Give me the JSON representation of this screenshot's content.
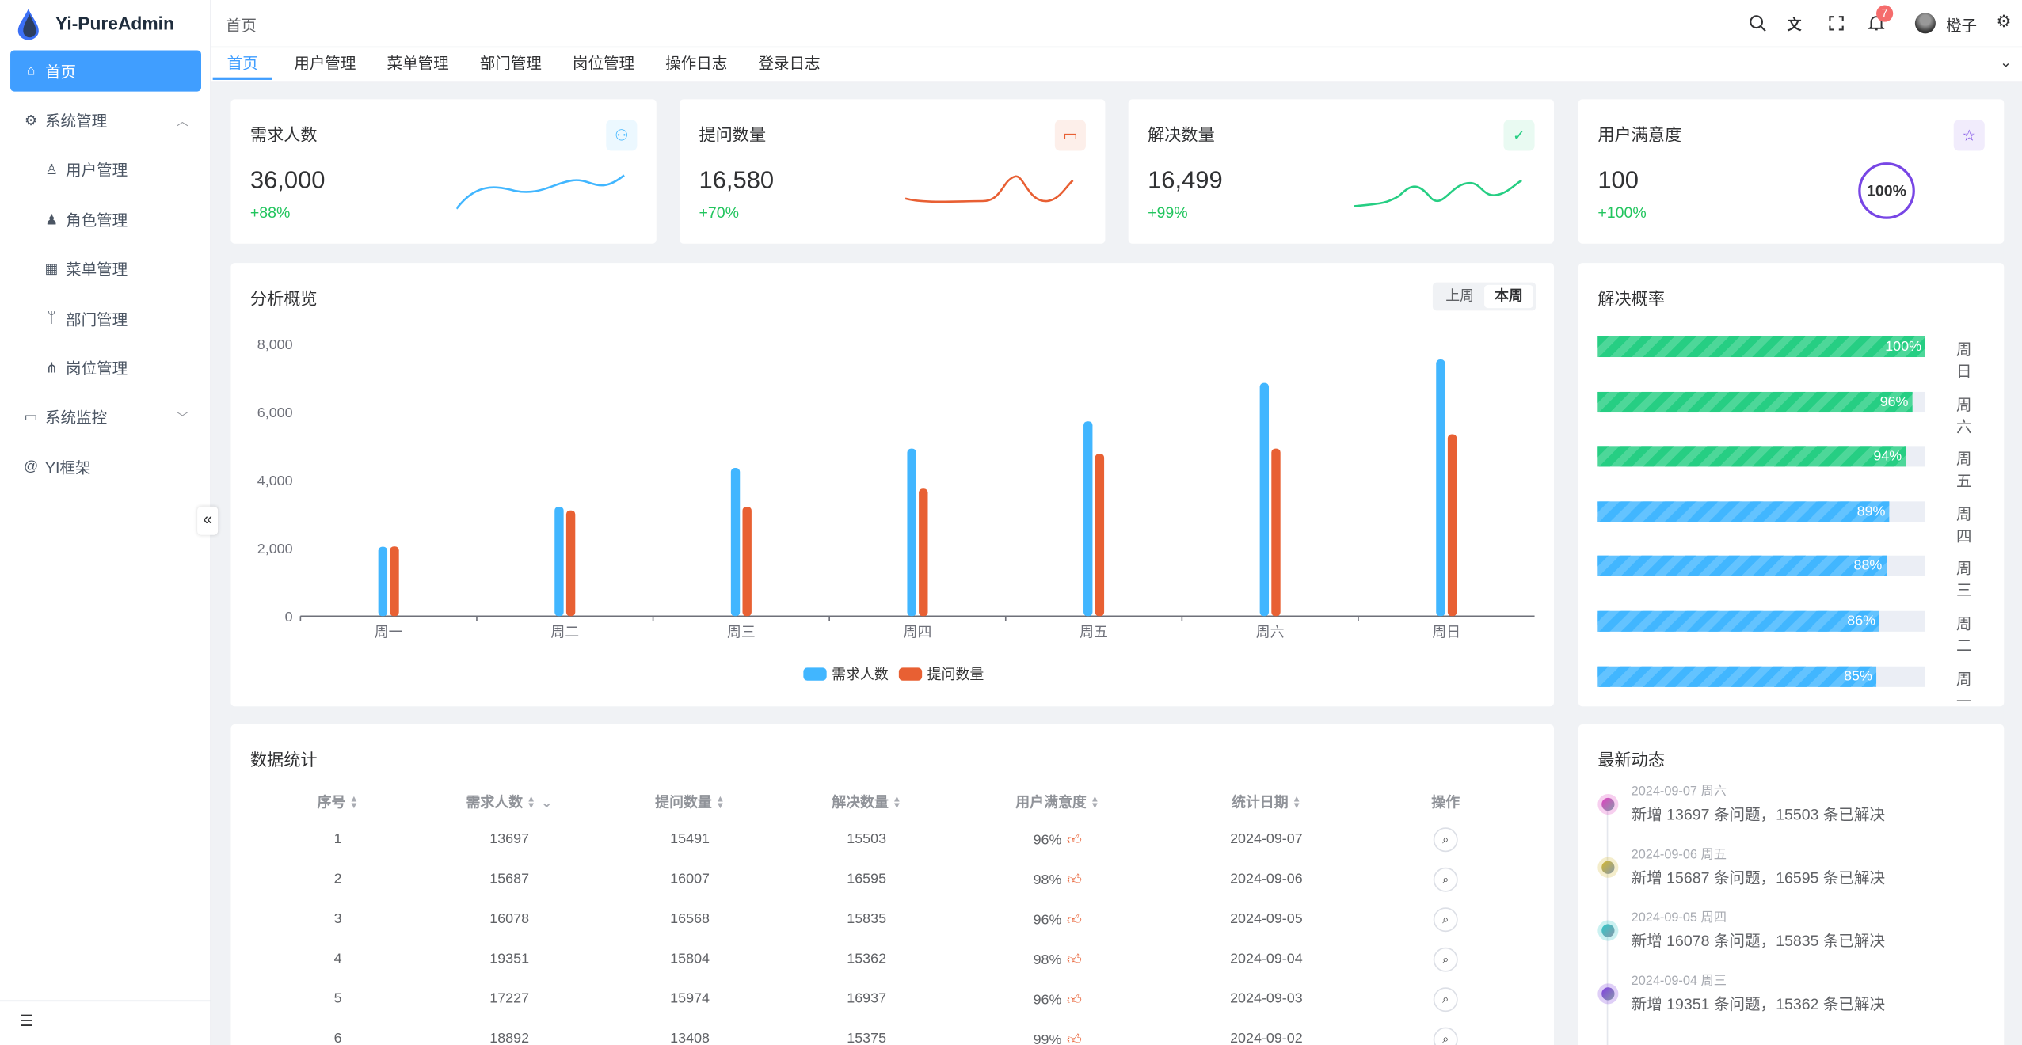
{
  "app": {
    "title": "Yi-PureAdmin",
    "brand_color": "#409eff"
  },
  "sidebar": {
    "items": [
      {
        "label": "首页",
        "icon": "home-icon",
        "active": true
      },
      {
        "label": "系统管理",
        "icon": "gear-icon",
        "expanded": true
      },
      {
        "label": "用户管理",
        "icon": "user-lock-icon"
      },
      {
        "label": "角色管理",
        "icon": "role-icon"
      },
      {
        "label": "菜单管理",
        "icon": "grid-icon"
      },
      {
        "label": "部门管理",
        "icon": "branch-icon"
      },
      {
        "label": "岗位管理",
        "icon": "tree-icon"
      },
      {
        "label": "系统监控",
        "icon": "monitor-icon"
      },
      {
        "label": "YI框架",
        "icon": "at-icon"
      }
    ]
  },
  "header": {
    "breadcrumb": "首页",
    "notification_count": "7",
    "username": "橙子"
  },
  "tabs": [
    {
      "label": "首页",
      "active": true
    },
    {
      "label": "用户管理"
    },
    {
      "label": "菜单管理"
    },
    {
      "label": "部门管理"
    },
    {
      "label": "岗位管理"
    },
    {
      "label": "操作日志"
    },
    {
      "label": "登录日志"
    }
  ],
  "stats": [
    {
      "title": "需求人数",
      "value": "36,000",
      "change": "+88%",
      "color": "#41b6ff",
      "icon": "users-icon"
    },
    {
      "title": "提问数量",
      "value": "16,580",
      "change": "+70%",
      "color": "#e85f33",
      "icon": "question-icon"
    },
    {
      "title": "解决数量",
      "value": "16,499",
      "change": "+99%",
      "color": "#26ce83",
      "icon": "check-icon"
    },
    {
      "title": "用户满意度",
      "value": "100",
      "change": "+100%",
      "color": "#7846e5",
      "icon": "star-icon",
      "ring_label": "100%",
      "ring_percent": 100
    }
  ],
  "overview": {
    "title": "分析概览",
    "toggle": [
      "上周",
      "本周"
    ],
    "selected": "本周"
  },
  "chart_data": {
    "type": "bar",
    "categories": [
      "周一",
      "周二",
      "周三",
      "周四",
      "周五",
      "周六",
      "周日"
    ],
    "ylim": [
      0,
      8000
    ],
    "yticks": [
      "0",
      "2,000",
      "4,000",
      "6,000",
      "8,000"
    ],
    "legend_position": "bottom",
    "grid": false,
    "series": [
      {
        "name": "需求人数",
        "color": "#41b6ff",
        "values": [
          2040,
          3220,
          4360,
          4930,
          5730,
          6860,
          7550
        ]
      },
      {
        "name": "提问数量",
        "color": "#e86033",
        "values": [
          2050,
          3110,
          3220,
          3750,
          4780,
          4930,
          5350
        ]
      }
    ]
  },
  "resolve": {
    "title": "解决概率",
    "rows": [
      {
        "day": "周日",
        "percent": 100,
        "label": "100%",
        "color": "#26ce83"
      },
      {
        "day": "周六",
        "percent": 96,
        "label": "96%",
        "color": "#26ce83"
      },
      {
        "day": "周五",
        "percent": 94,
        "label": "94%",
        "color": "#26ce83"
      },
      {
        "day": "周四",
        "percent": 89,
        "label": "89%",
        "color": "#41b6ff"
      },
      {
        "day": "周三",
        "percent": 88,
        "label": "88%",
        "color": "#41b6ff"
      },
      {
        "day": "周二",
        "percent": 86,
        "label": "86%",
        "color": "#41b6ff"
      },
      {
        "day": "周一",
        "percent": 85,
        "label": "85%",
        "color": "#41b6ff"
      }
    ]
  },
  "table": {
    "title": "数据统计",
    "columns": [
      "序号",
      "需求人数",
      "提问数量",
      "解决数量",
      "用户满意度",
      "统计日期",
      "操作"
    ],
    "rows": [
      [
        "1",
        "13697",
        "15491",
        "15503",
        "96%",
        "2024-09-07"
      ],
      [
        "2",
        "15687",
        "16007",
        "16595",
        "98%",
        "2024-09-06"
      ],
      [
        "3",
        "16078",
        "16568",
        "15835",
        "96%",
        "2024-09-05"
      ],
      [
        "4",
        "19351",
        "15804",
        "15362",
        "98%",
        "2024-09-04"
      ],
      [
        "5",
        "17227",
        "15974",
        "16937",
        "96%",
        "2024-09-03"
      ],
      [
        "6",
        "18892",
        "13408",
        "15375",
        "99%",
        "2024-09-02"
      ]
    ]
  },
  "timeline": {
    "title": "最新动态",
    "items": [
      {
        "date": "2024-09-07 周六",
        "text": "新增 13697 条问题，15503 条已解决",
        "color": "#e040c0"
      },
      {
        "date": "2024-09-06 周五",
        "text": "新增 15687 条问题，16595 条已解决",
        "color": "#d4b830"
      },
      {
        "date": "2024-09-05 周四",
        "text": "新增 16078 条问题，15835 条已解决",
        "color": "#30c8c8"
      },
      {
        "date": "2024-09-04 周三",
        "text": "新增 19351 条问题，15362 条已解决",
        "color": "#8040e0"
      }
    ]
  }
}
